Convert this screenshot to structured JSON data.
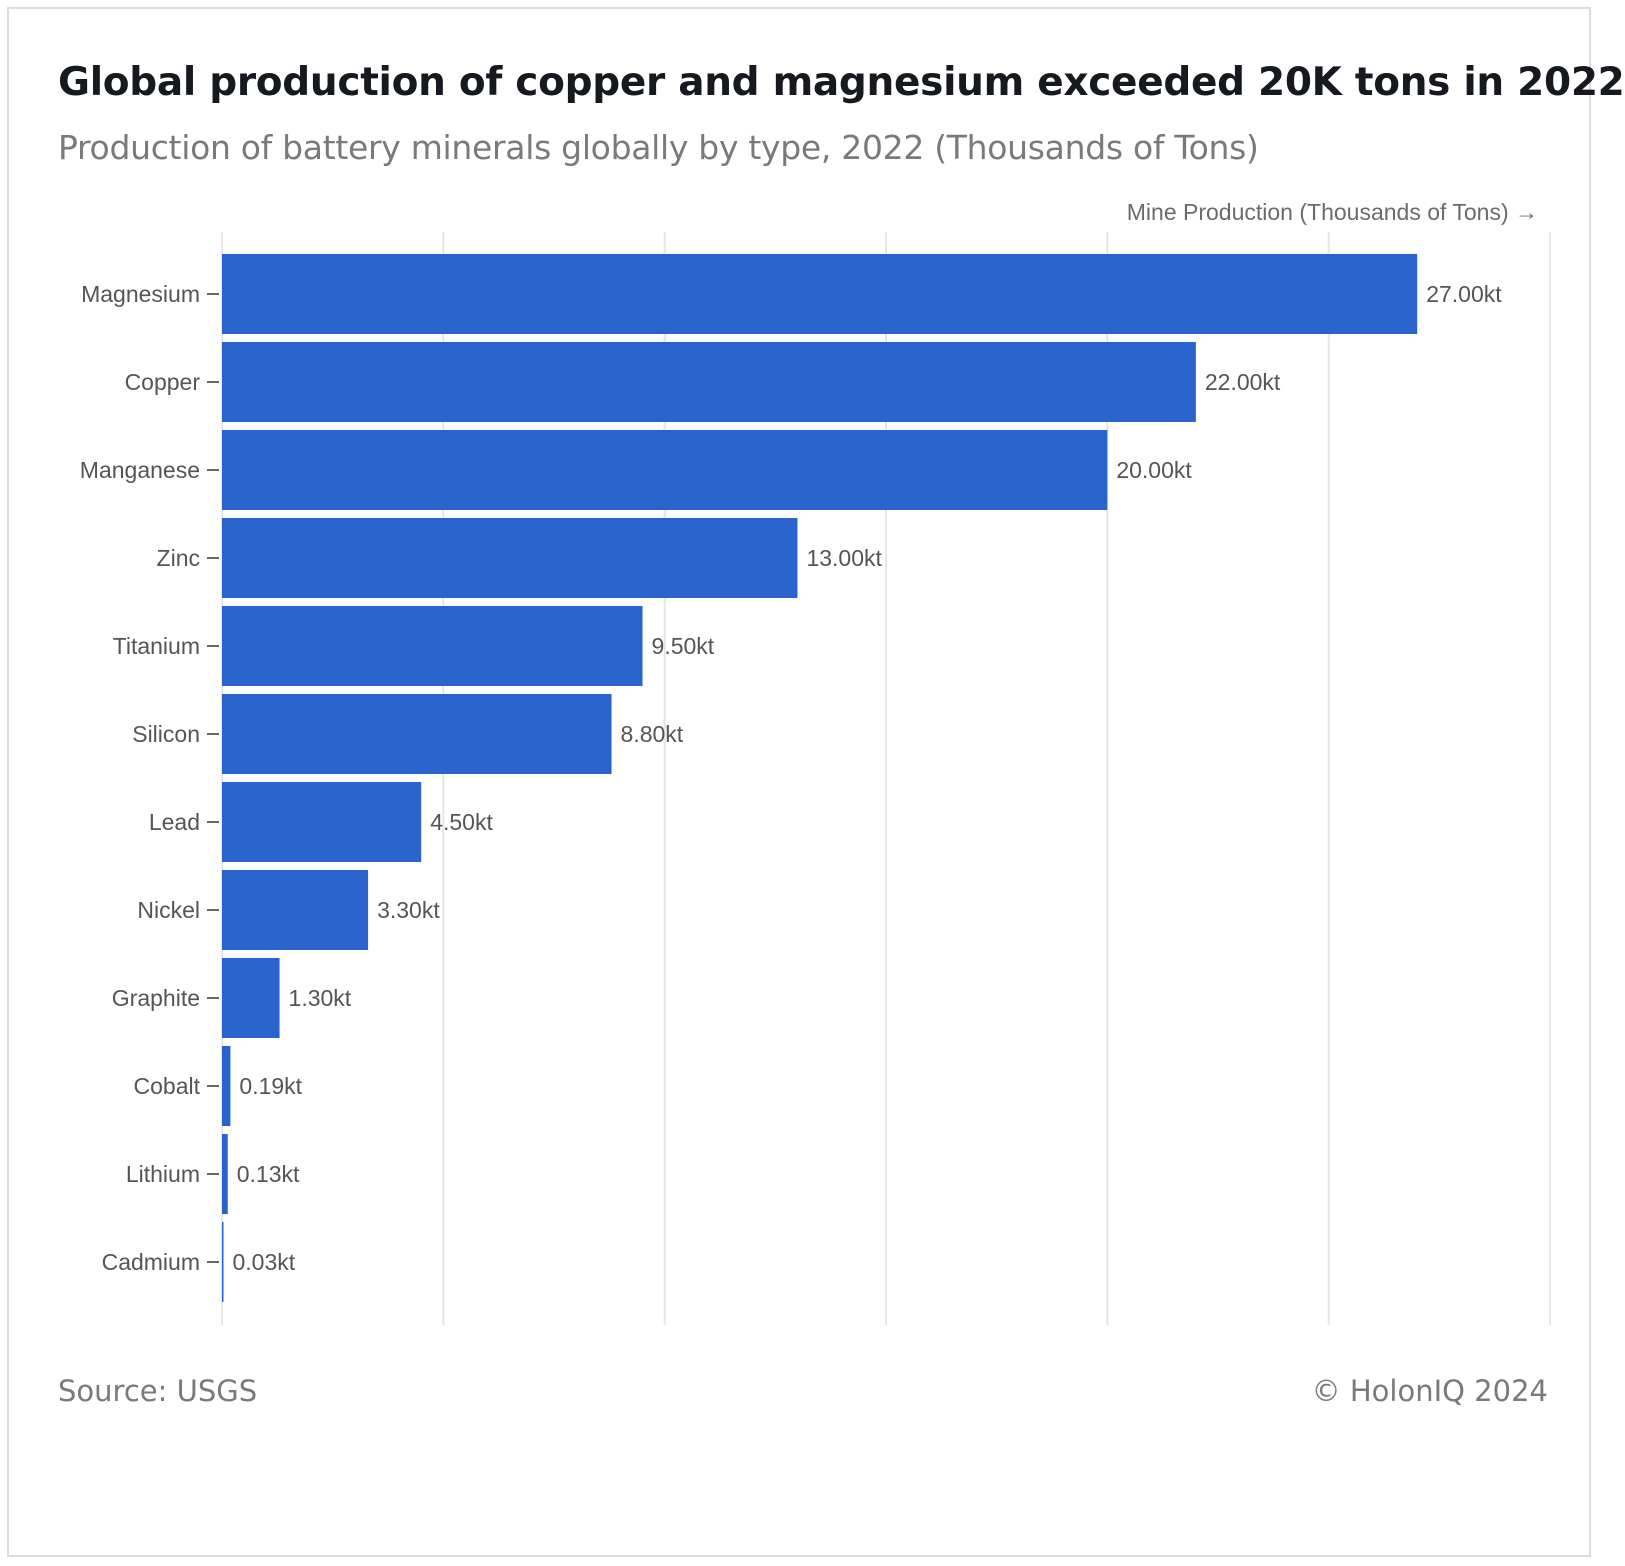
{
  "title": "Global production of copper and magnesium exceeded 20K tons in 2022",
  "subtitle": "Production of battery minerals globally by type, 2022 (Thousands of Tons)",
  "source": "Source: USGS",
  "copyright": "© HolonIQ 2024",
  "colors": {
    "bar": "#2964cc",
    "grid": "#e6e6e6",
    "tick": "#666666"
  },
  "chart_data": {
    "type": "bar",
    "orientation": "horizontal",
    "xlabel": "Mine Production (Thousands of Tons) →",
    "ylabel": "",
    "xlim": [
      0,
      30
    ],
    "grid": true,
    "categories": [
      "Magnesium",
      "Copper",
      "Manganese",
      "Zinc",
      "Titanium",
      "Silicon",
      "Lead",
      "Nickel",
      "Graphite",
      "Cobalt",
      "Lithium",
      "Cadmium"
    ],
    "values": [
      27.0,
      22.0,
      20.0,
      13.0,
      9.5,
      8.8,
      4.5,
      3.3,
      1.3,
      0.19,
      0.13,
      0.03
    ],
    "data_labels": [
      "27.00kt",
      "22.00kt",
      "20.00kt",
      "13.00kt",
      "9.50kt",
      "8.80kt",
      "4.50kt",
      "3.30kt",
      "1.30kt",
      "0.19kt",
      "0.13kt",
      "0.03kt"
    ]
  }
}
